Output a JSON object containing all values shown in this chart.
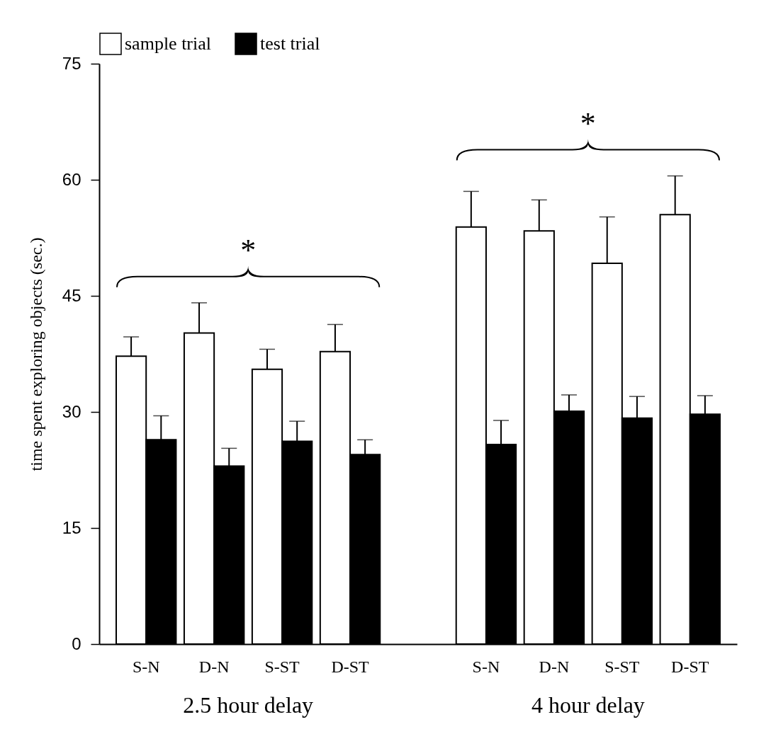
{
  "chart_data": {
    "type": "bar",
    "ylabel": "time spent exploring objects (sec.)",
    "categories": [
      "S-N",
      "D-N",
      "S-ST",
      "D-ST",
      "S-N",
      "D-N",
      "S-ST",
      "D-ST"
    ],
    "series": [
      {
        "name": "sample trial",
        "color": "#ffffff",
        "values": [
          37.2,
          40.2,
          35.5,
          37.8,
          53.9,
          53.4,
          49.2,
          55.5
        ],
        "errors": [
          [
            37.2,
            39.7
          ],
          [
            40.2,
            44.1
          ],
          [
            35.5,
            38.1
          ],
          [
            37.8,
            41.3
          ],
          [
            53.9,
            58.5
          ],
          [
            53.4,
            57.4
          ],
          [
            49.2,
            55.2
          ],
          [
            55.5,
            60.5
          ]
        ]
      },
      {
        "name": "test trial",
        "color": "#000000",
        "values": [
          26.4,
          23.0,
          26.2,
          24.5,
          25.8,
          30.1,
          29.2,
          29.7
        ],
        "errors": [
          [
            26.4,
            29.5
          ],
          [
            23.0,
            25.3
          ],
          [
            26.2,
            28.8
          ],
          [
            24.5,
            26.4
          ],
          [
            25.8,
            28.9
          ],
          [
            30.1,
            32.2
          ],
          [
            29.2,
            32.0
          ],
          [
            29.7,
            32.1
          ]
        ]
      }
    ],
    "ylim": [
      0,
      75
    ],
    "yticks": [
      0,
      15,
      30,
      45,
      60,
      75
    ],
    "legend": "top",
    "grid": false,
    "annotations": [
      "2.5 hour delay",
      "4 hour delay",
      "*",
      "*"
    ]
  }
}
